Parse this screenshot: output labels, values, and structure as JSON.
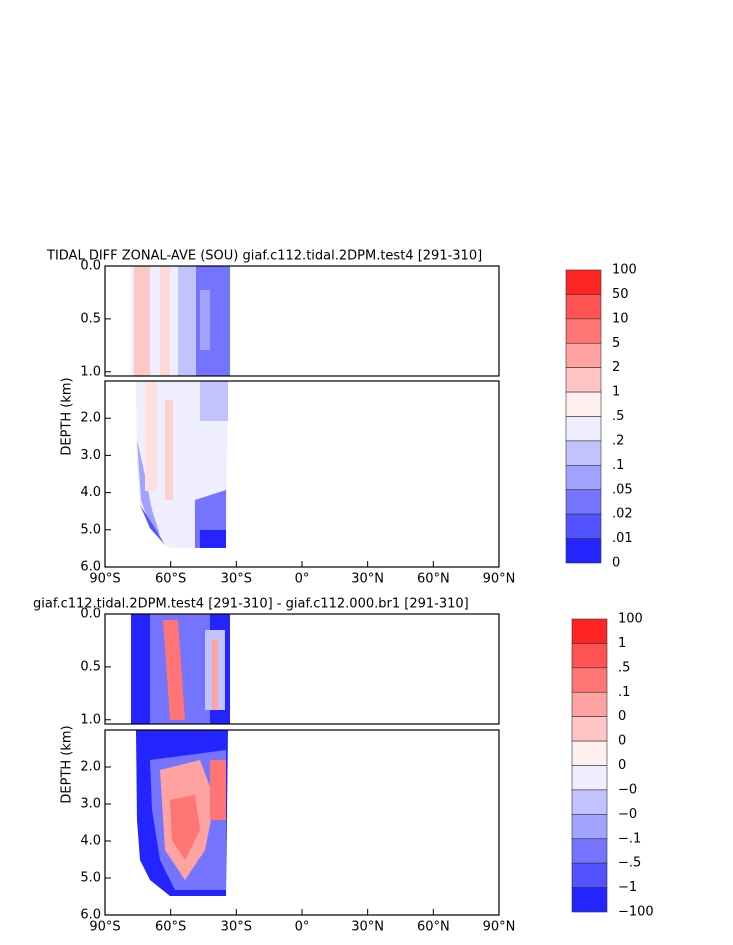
{
  "chart_data": [
    {
      "type": "contour",
      "title": "TIDAL  DIFF  ZONAL-AVE  (SOU)  giaf.c112.tidal.2DPM.test4  [291-310]",
      "y_label": "DEPTH (km)",
      "xlim": [
        -90,
        90
      ],
      "xticks": [
        {
          "value": -90,
          "label": "90°S"
        },
        {
          "value": -60,
          "label": "60°S"
        },
        {
          "value": -30,
          "label": "30°S"
        },
        {
          "value": 0,
          "label": "0°"
        },
        {
          "value": 30,
          "label": "30°N"
        },
        {
          "value": 60,
          "label": "60°N"
        },
        {
          "value": 90,
          "label": "90°N"
        }
      ],
      "segments": [
        {
          "ylim": [
            0,
            1.04
          ],
          "yticks": [
            {
              "value": 0,
              "label": "0.0"
            },
            {
              "value": 0.5,
              "label": "0.5"
            },
            {
              "value": 1,
              "label": "1.0"
            }
          ]
        },
        {
          "ylim": [
            1,
            6
          ],
          "yticks": [
            {
              "value": 2,
              "label": "2.0"
            },
            {
              "value": 3,
              "label": "3.0"
            },
            {
              "value": 4,
              "label": "4.0"
            },
            {
              "value": 5,
              "label": "5.0"
            },
            {
              "value": 6,
              "label": "6.0"
            }
          ]
        }
      ],
      "colorbar": {
        "labels": [
          "100",
          "50",
          "10",
          "5",
          "2",
          "1",
          ".5",
          ".2",
          ".1",
          ".05",
          ".02",
          ".01",
          "0"
        ],
        "colors": [
          "#ff2424",
          "#ff5252",
          "#ff7474",
          "#ffa2a2",
          "#ffc4c4",
          "#fff0f0",
          "#eeeeff",
          "#c2c2ff",
          "#a2a2ff",
          "#7474ff",
          "#5252ff",
          "#2424ff"
        ]
      }
    },
    {
      "type": "contour",
      "title": "giaf.c112.tidal.2DPM.test4  [291-310]  -  giaf.c112.000.br1  [291-310]",
      "y_label": "DEPTH (km)",
      "xlim": [
        -90,
        90
      ],
      "xticks": [
        {
          "value": -90,
          "label": "90°S"
        },
        {
          "value": -60,
          "label": "60°S"
        },
        {
          "value": -30,
          "label": "30°S"
        },
        {
          "value": 0,
          "label": "0°"
        },
        {
          "value": 30,
          "label": "30°N"
        },
        {
          "value": 60,
          "label": "60°N"
        },
        {
          "value": 90,
          "label": "90°N"
        }
      ],
      "segments": [
        {
          "ylim": [
            0,
            1.04
          ],
          "yticks": [
            {
              "value": 0,
              "label": "0.0"
            },
            {
              "value": 0.5,
              "label": "0.5"
            },
            {
              "value": 1,
              "label": "1.0"
            }
          ]
        },
        {
          "ylim": [
            1,
            6
          ],
          "yticks": [
            {
              "value": 2,
              "label": "2.0"
            },
            {
              "value": 3,
              "label": "3.0"
            },
            {
              "value": 4,
              "label": "4.0"
            },
            {
              "value": 5,
              "label": "5.0"
            },
            {
              "value": 6,
              "label": "6.0"
            }
          ]
        }
      ],
      "colorbar": {
        "labels": [
          "100",
          "1",
          ".5",
          ".1",
          "0",
          "0",
          "0",
          "−0",
          "−0",
          "−.1",
          "−.5",
          "−1",
          "−100"
        ],
        "colors": [
          "#ff2424",
          "#ff5252",
          "#ff7474",
          "#ffa2a2",
          "#ffc4c4",
          "#fff0f0",
          "#eeeeff",
          "#c2c2ff",
          "#a2a2ff",
          "#7474ff",
          "#5252ff",
          "#2424ff"
        ]
      }
    }
  ]
}
